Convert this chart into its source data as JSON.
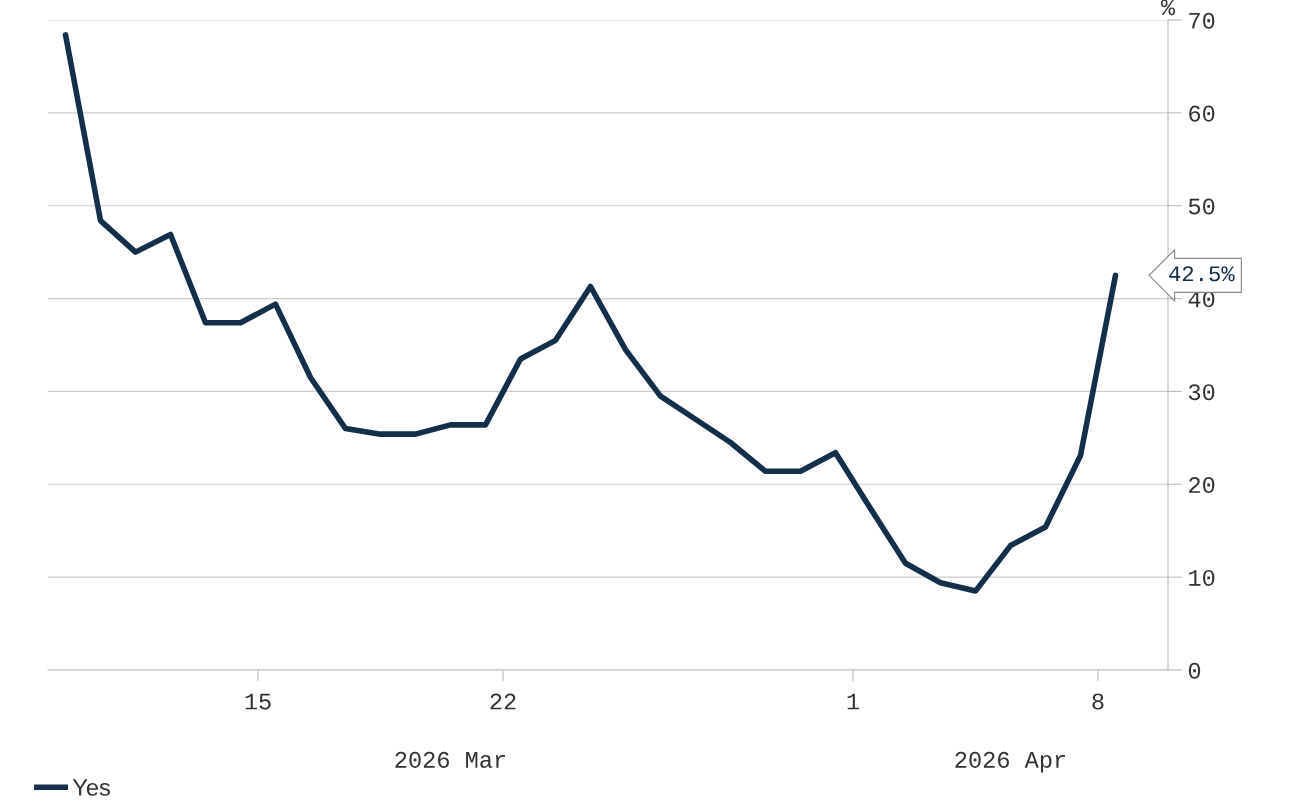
{
  "chart_data": {
    "type": "line",
    "ylabel": "%",
    "x": [
      "2026-03-09T12:00",
      "2026-03-10T12:00",
      "2026-03-11T12:00",
      "2026-03-12T12:00",
      "2026-03-13T12:00",
      "2026-03-14T12:00",
      "2026-03-15T12:00",
      "2026-03-16T12:00",
      "2026-03-17T12:00",
      "2026-03-18T12:00",
      "2026-03-19T12:00",
      "2026-03-20T12:00",
      "2026-03-21T12:00",
      "2026-03-22T12:00",
      "2026-03-23T12:00",
      "2026-03-24T12:00",
      "2026-03-25T12:00",
      "2026-03-26T12:00",
      "2026-03-27T12:00",
      "2026-03-28T12:00",
      "2026-03-29T12:00",
      "2026-03-30T12:00",
      "2026-03-31T12:00",
      "2026-04-01T12:00",
      "2026-04-02T12:00",
      "2026-04-03T12:00",
      "2026-04-04T12:00",
      "2026-04-05T12:00",
      "2026-04-06T12:00",
      "2026-04-07T12:00",
      "2026-04-08T12:00"
    ],
    "series": [
      {
        "name": "Yes",
        "color": "#132f4a",
        "values": [
          68.4,
          48.4,
          45.0,
          46.9,
          37.4,
          37.4,
          39.4,
          31.5,
          26.0,
          25.4,
          25.4,
          26.4,
          26.4,
          33.5,
          35.5,
          41.3,
          34.5,
          29.5,
          27.0,
          24.5,
          21.4,
          21.4,
          23.4,
          17.4,
          11.5,
          9.4,
          8.5,
          13.4,
          15.4,
          23.1,
          42.5
        ]
      }
    ],
    "xlim": [
      "2026-03-09",
      "2026-04-10"
    ],
    "xticks": [
      {
        "value": "2026-03-15",
        "label": "15"
      },
      {
        "value": "2026-03-22",
        "label": "22"
      },
      {
        "value": "2026-04-01",
        "label": "1"
      },
      {
        "value": "2026-04-08",
        "label": "8"
      }
    ],
    "ylim": [
      0,
      70
    ],
    "yticks": [
      0,
      10,
      20,
      30,
      40,
      50,
      60,
      70
    ],
    "annotations": [
      "2026 Mar",
      "2026 Apr",
      {
        "text": "42.5%",
        "x": "2026-04-08T12:00",
        "y": 42.5
      }
    ],
    "grid": "y",
    "legend": "bottom left",
    "marker": "none",
    "line_style": "solid"
  }
}
